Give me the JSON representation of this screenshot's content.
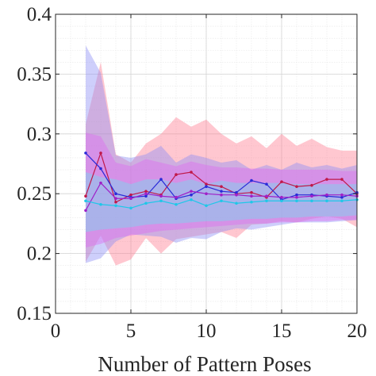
{
  "chart_data": {
    "type": "line",
    "xlabel": "Number of Pattern Poses",
    "ylabel": "",
    "xlim": [
      0,
      20
    ],
    "ylim": [
      0.15,
      0.4
    ],
    "xticks": [
      0,
      5,
      10,
      15,
      20
    ],
    "yticks": [
      0.15,
      0.2,
      0.25,
      0.3,
      0.35,
      0.4
    ],
    "xtick_labels": [
      "0",
      "5",
      "10",
      "15",
      "20"
    ],
    "ytick_labels": [
      "0.15",
      "0.2",
      "0.25",
      "0.3",
      "0.35",
      "0.4"
    ],
    "grid": true,
    "legend": "none",
    "x": [
      2,
      3,
      4,
      5,
      6,
      7,
      8,
      9,
      10,
      11,
      12,
      13,
      14,
      15,
      16,
      17,
      18,
      19,
      20
    ],
    "series": [
      {
        "color": "#c0184a",
        "band_color": "#ff7a8f",
        "values": [
          0.248,
          0.284,
          0.243,
          0.249,
          0.252,
          0.249,
          0.266,
          0.268,
          0.258,
          0.256,
          0.25,
          0.251,
          0.247,
          0.26,
          0.256,
          0.257,
          0.262,
          0.262,
          0.25
        ],
        "lower": [
          0.193,
          0.215,
          0.19,
          0.195,
          0.213,
          0.2,
          0.212,
          0.214,
          0.216,
          0.218,
          0.213,
          0.224,
          0.225,
          0.227,
          0.226,
          0.229,
          0.231,
          0.229,
          0.222
        ],
        "upper": [
          0.308,
          0.36,
          0.283,
          0.276,
          0.292,
          0.3,
          0.314,
          0.306,
          0.312,
          0.3,
          0.292,
          0.298,
          0.288,
          0.3,
          0.29,
          0.296,
          0.289,
          0.286,
          0.286
        ]
      },
      {
        "color": "#2a2ad8",
        "band_color": "#8a8cf5",
        "values": [
          0.284,
          0.271,
          0.25,
          0.247,
          0.248,
          0.262,
          0.246,
          0.249,
          0.256,
          0.252,
          0.251,
          0.261,
          0.258,
          0.245,
          0.249,
          0.249,
          0.248,
          0.247,
          0.251
        ],
        "lower": [
          0.192,
          0.196,
          0.21,
          0.216,
          0.215,
          0.214,
          0.209,
          0.213,
          0.212,
          0.218,
          0.221,
          0.22,
          0.222,
          0.224,
          0.226,
          0.226,
          0.226,
          0.227,
          0.228
        ],
        "upper": [
          0.374,
          0.351,
          0.282,
          0.28,
          0.283,
          0.29,
          0.276,
          0.283,
          0.28,
          0.276,
          0.278,
          0.27,
          0.274,
          0.27,
          0.276,
          0.272,
          0.274,
          0.271,
          0.274
        ]
      },
      {
        "color": "#a020c8",
        "band_color": "#e168f0",
        "values": [
          0.236,
          0.259,
          0.246,
          0.246,
          0.25,
          0.248,
          0.247,
          0.252,
          0.25,
          0.249,
          0.249,
          0.248,
          0.248,
          0.247,
          0.247,
          0.248,
          0.249,
          0.249,
          0.248
        ],
        "lower": [
          0.205,
          0.208,
          0.213,
          0.215,
          0.217,
          0.219,
          0.22,
          0.221,
          0.222,
          0.223,
          0.224,
          0.225,
          0.225,
          0.226,
          0.226,
          0.227,
          0.227,
          0.228,
          0.228
        ],
        "upper": [
          0.301,
          0.298,
          0.276,
          0.273,
          0.279,
          0.276,
          0.273,
          0.277,
          0.274,
          0.272,
          0.272,
          0.271,
          0.271,
          0.27,
          0.27,
          0.27,
          0.27,
          0.269,
          0.269
        ]
      },
      {
        "color": "#1ec8e8",
        "band_color": "#6fe0ef",
        "values": [
          0.244,
          0.241,
          0.24,
          0.238,
          0.242,
          0.244,
          0.241,
          0.245,
          0.24,
          0.244,
          0.242,
          0.243,
          0.244,
          0.244,
          0.244,
          0.244,
          0.244,
          0.244,
          0.245
        ],
        "lower": [
          0.218,
          0.22,
          0.221,
          0.222,
          0.224,
          0.225,
          0.225,
          0.226,
          0.227,
          0.227,
          0.228,
          0.229,
          0.229,
          0.23,
          0.23,
          0.231,
          0.231,
          0.231,
          0.232
        ],
        "upper": [
          0.268,
          0.264,
          0.262,
          0.258,
          0.262,
          0.262,
          0.259,
          0.262,
          0.258,
          0.261,
          0.259,
          0.259,
          0.259,
          0.259,
          0.258,
          0.258,
          0.258,
          0.258,
          0.258
        ]
      }
    ]
  }
}
